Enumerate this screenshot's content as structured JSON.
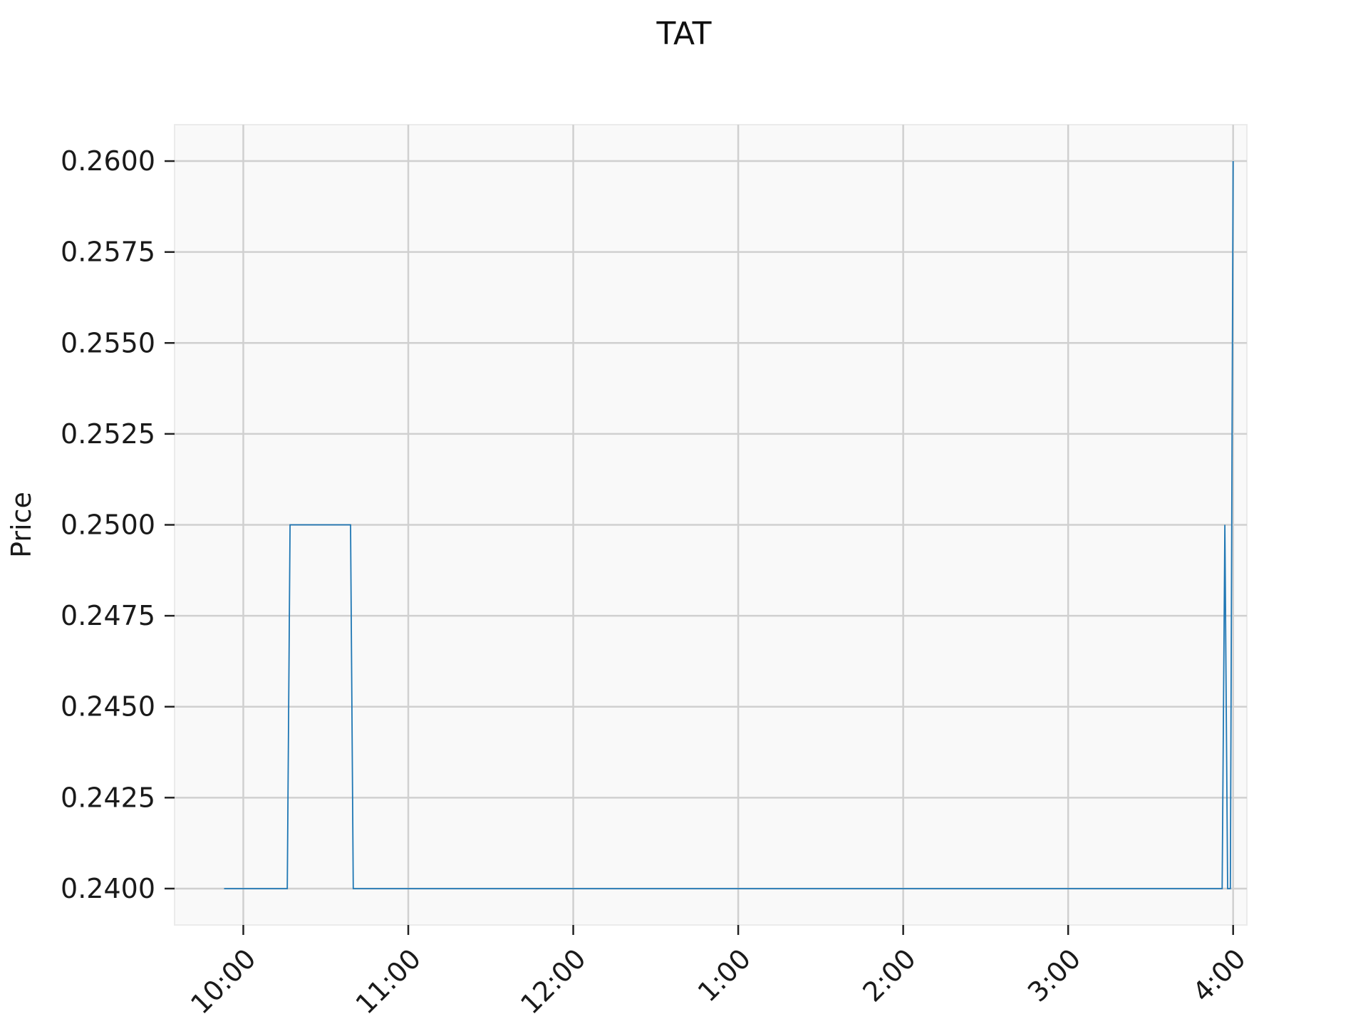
{
  "chart_data": {
    "type": "line",
    "title": "TAT",
    "xlabel": "",
    "ylabel": "Price",
    "ylim": [
      0.239,
      0.261
    ],
    "xlim": [
      "09:35",
      "16:05"
    ],
    "yticks": [
      0.24,
      0.2425,
      0.245,
      0.2475,
      0.25,
      0.2525,
      0.255,
      0.2575,
      0.26
    ],
    "ytick_labels": [
      "0.2400",
      "0.2425",
      "0.2450",
      "0.2475",
      "0.2500",
      "0.2525",
      "0.2550",
      "0.2575",
      "0.2600"
    ],
    "xticks": [
      "10:00",
      "11:00",
      "12:00",
      "13:00",
      "14:00",
      "15:00",
      "16:00"
    ],
    "xtick_labels": [
      "10:00",
      "11:00",
      "12:00",
      "1:00",
      "2:00",
      "3:00",
      "4:00"
    ],
    "grid": true,
    "series": [
      {
        "color": "#1f77b4",
        "x": [
          "09:53",
          "10:16",
          "10:17",
          "10:39",
          "10:40",
          "15:56",
          "15:57",
          "15:58",
          "15:59",
          "16:00"
        ],
        "y": [
          0.24,
          0.24,
          0.25,
          0.25,
          0.24,
          0.24,
          0.25,
          0.24,
          0.24,
          0.26
        ]
      }
    ]
  }
}
